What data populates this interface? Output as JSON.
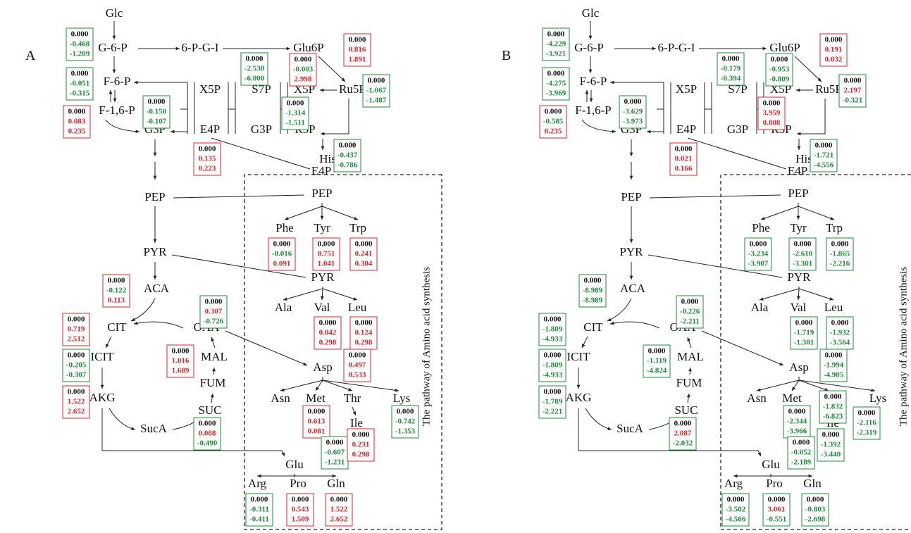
{
  "pathway_label": "The pathway of Amino acid synthesis",
  "panels": [
    {
      "label": "A",
      "nodes": [
        "Glc",
        "G-6-P",
        "6-P-G-I",
        "Glu6P",
        "F-6-P",
        "X5P",
        "S7P",
        "X5P",
        "Ru5P",
        "F-1,6-P",
        "G3P",
        "E4P",
        "G3P",
        "R5P",
        "His",
        "E4P",
        "PEP",
        "PEP",
        "Phe",
        "Tyr",
        "Trp",
        "PYR",
        "PYR",
        "ACA",
        "Ala",
        "Val",
        "Leu",
        "CIT",
        "OAA",
        "MAL",
        "ICIT",
        "Asp",
        "FUM",
        "Asn",
        "Met",
        "Thr",
        "Lys",
        "AKG",
        "SUC",
        "Ile",
        "SucA",
        "Glu",
        "Arg",
        "Pro",
        "Gln"
      ],
      "boxes": [
        {
          "values": [
            "0.000",
            "-0.468",
            "-1.209"
          ]
        },
        {
          "values": [
            "0.000",
            "0.816",
            "1.891"
          ]
        },
        {
          "values": [
            "0.000",
            "-0.051",
            "-0.315"
          ]
        },
        {
          "values": [
            "0.000",
            "-2.530",
            "-6.000"
          ]
        },
        {
          "values": [
            "0.000",
            "-0.003",
            "2.998"
          ]
        },
        {
          "values": [
            "0.000",
            "-1.067",
            "-1.487"
          ]
        },
        {
          "values": [
            "0.000",
            "0.083",
            "0.235"
          ]
        },
        {
          "values": [
            "0.000",
            "-0.150",
            "-0.107"
          ]
        },
        {
          "values": [
            "0.000",
            "-1.314",
            "-1.511"
          ]
        },
        {
          "values": [
            "0.000",
            "0.135",
            "0.223"
          ]
        },
        {
          "values": [
            "0.000",
            "-0.437",
            "-0.786"
          ]
        },
        {
          "values": [
            "0.000",
            "-0.016",
            "0.091"
          ]
        },
        {
          "values": [
            "0.000",
            "0.751",
            "1.041"
          ]
        },
        {
          "values": [
            "0.000",
            "0.241",
            "0.304"
          ]
        },
        {
          "values": [
            "0.000",
            "-0.122",
            "0.113"
          ]
        },
        {
          "values": [
            "0.000",
            "0.307",
            "-0.726"
          ]
        },
        {
          "values": [
            "0.000",
            "0.719",
            "2.512"
          ]
        },
        {
          "values": [
            "0.000",
            "0.042",
            "0.298"
          ]
        },
        {
          "values": [
            "0.000",
            "0.124",
            "0.298"
          ]
        },
        {
          "values": [
            "0.000",
            "1.016",
            "1.689"
          ]
        },
        {
          "values": [
            "0.000",
            "-0.205",
            "-0.307"
          ]
        },
        {
          "values": [
            "0.000",
            "0.497",
            "0.533"
          ]
        },
        {
          "values": [
            "0.000",
            "1.522",
            "2.652"
          ]
        },
        {
          "values": [
            "0.000",
            "0.613",
            "0.081"
          ]
        },
        {
          "values": [
            "0.000",
            "-0.742",
            "-1.353"
          ]
        },
        {
          "values": [
            "0.000",
            "0.008",
            "-0.490"
          ]
        },
        {
          "values": [
            "0.000",
            "-0.607",
            "-1.231"
          ]
        },
        {
          "values": [
            "0.000",
            "0.231",
            "0.298"
          ]
        },
        {
          "values": [
            "0.000",
            "-0.311",
            "-0.411"
          ]
        },
        {
          "values": [
            "0.000",
            "0.543",
            "1.509"
          ]
        },
        {
          "values": [
            "0.000",
            "1.522",
            "2.652"
          ]
        }
      ]
    },
    {
      "label": "B",
      "nodes": [
        "Glc",
        "G-6-P",
        "6-P-G-I",
        "Glu6P",
        "F-6-P",
        "X5P",
        "S7P",
        "X5P",
        "Ru5P",
        "F-1,6-P",
        "G3P",
        "E4P",
        "G3P",
        "R5P",
        "His",
        "E4P",
        "PEP",
        "PEP",
        "Phe",
        "Tyr",
        "Trp",
        "PYR",
        "PYR",
        "ACA",
        "Ala",
        "Val",
        "Leu",
        "CIT",
        "OAA",
        "MAL",
        "ICIT",
        "Asp",
        "FUM",
        "Asn",
        "Met",
        "Thr",
        "Lys",
        "AKG",
        "SUC",
        "Ile",
        "SucA",
        "Glu",
        "Arg",
        "Pro",
        "Gln"
      ],
      "boxes": [
        {
          "values": [
            "0.000",
            "-4.229",
            "-3.921"
          ]
        },
        {
          "values": [
            "0.000",
            "0.191",
            "0.032"
          ]
        },
        {
          "values": [
            "0.000",
            "-4.275",
            "-3.969"
          ]
        },
        {
          "values": [
            "0.000",
            "-0.179",
            "-0.394"
          ]
        },
        {
          "values": [
            "0.000",
            "-0.953",
            "-0.809"
          ]
        },
        {
          "values": [
            "0.000",
            "2.197",
            "-0.321"
          ]
        },
        {
          "values": [
            "0.000",
            "-0.585",
            "0.235"
          ]
        },
        {
          "values": [
            "0.000",
            "-3.629",
            "-3.973"
          ]
        },
        {
          "values": [
            "0.000",
            "3.959",
            "0.808"
          ]
        },
        {
          "values": [
            "0.000",
            "0.021",
            "0.166"
          ]
        },
        {
          "values": [
            "0.000",
            "-1.721",
            "-4.556"
          ]
        },
        {
          "values": [
            "0.000",
            "-3.234",
            "-3.907"
          ]
        },
        {
          "values": [
            "0.000",
            "-2.610",
            "-3.301"
          ]
        },
        {
          "values": [
            "0.000",
            "-1.865",
            "-2.216"
          ]
        },
        {
          "values": [
            "0.000",
            "-8.989",
            "-8.989"
          ]
        },
        {
          "values": [
            "0.000",
            "-0.226",
            "-2.211"
          ]
        },
        {
          "values": [
            "0.000",
            "-1.809",
            "-4.933"
          ]
        },
        {
          "values": [
            "0.000",
            "-1.719",
            "-1.301"
          ]
        },
        {
          "values": [
            "0.000",
            "-1.932",
            "-3.564"
          ]
        },
        {
          "values": [
            "0.000",
            "-1.119",
            "-4.824"
          ]
        },
        {
          "values": [
            "0.000",
            "-1.809",
            "-4.933"
          ]
        },
        {
          "values": [
            "0.000",
            "-1.994",
            "-4.905"
          ]
        },
        {
          "values": [
            "0.000",
            "-1.789",
            "-2.221"
          ]
        },
        {
          "values": [
            "0.000",
            "-2.344",
            "-3.966"
          ]
        },
        {
          "values": [
            "0.000",
            "-1.832",
            "-6.823"
          ]
        },
        {
          "values": [
            "0.000",
            "-2.116",
            "-2.319"
          ]
        },
        {
          "values": [
            "0.000",
            "2.087",
            "-2.032"
          ]
        },
        {
          "values": [
            "0.000",
            "-0.052",
            "-2.189"
          ]
        },
        {
          "values": [
            "0.000",
            "-1.392",
            "-3.440"
          ]
        },
        {
          "values": [
            "0.000",
            "-3.502",
            "-4.566"
          ]
        },
        {
          "values": [
            "0.000",
            "3.061",
            "-0.551"
          ]
        },
        {
          "values": [
            "0.000",
            "-0.803",
            "-2.698"
          ]
        }
      ]
    }
  ]
}
